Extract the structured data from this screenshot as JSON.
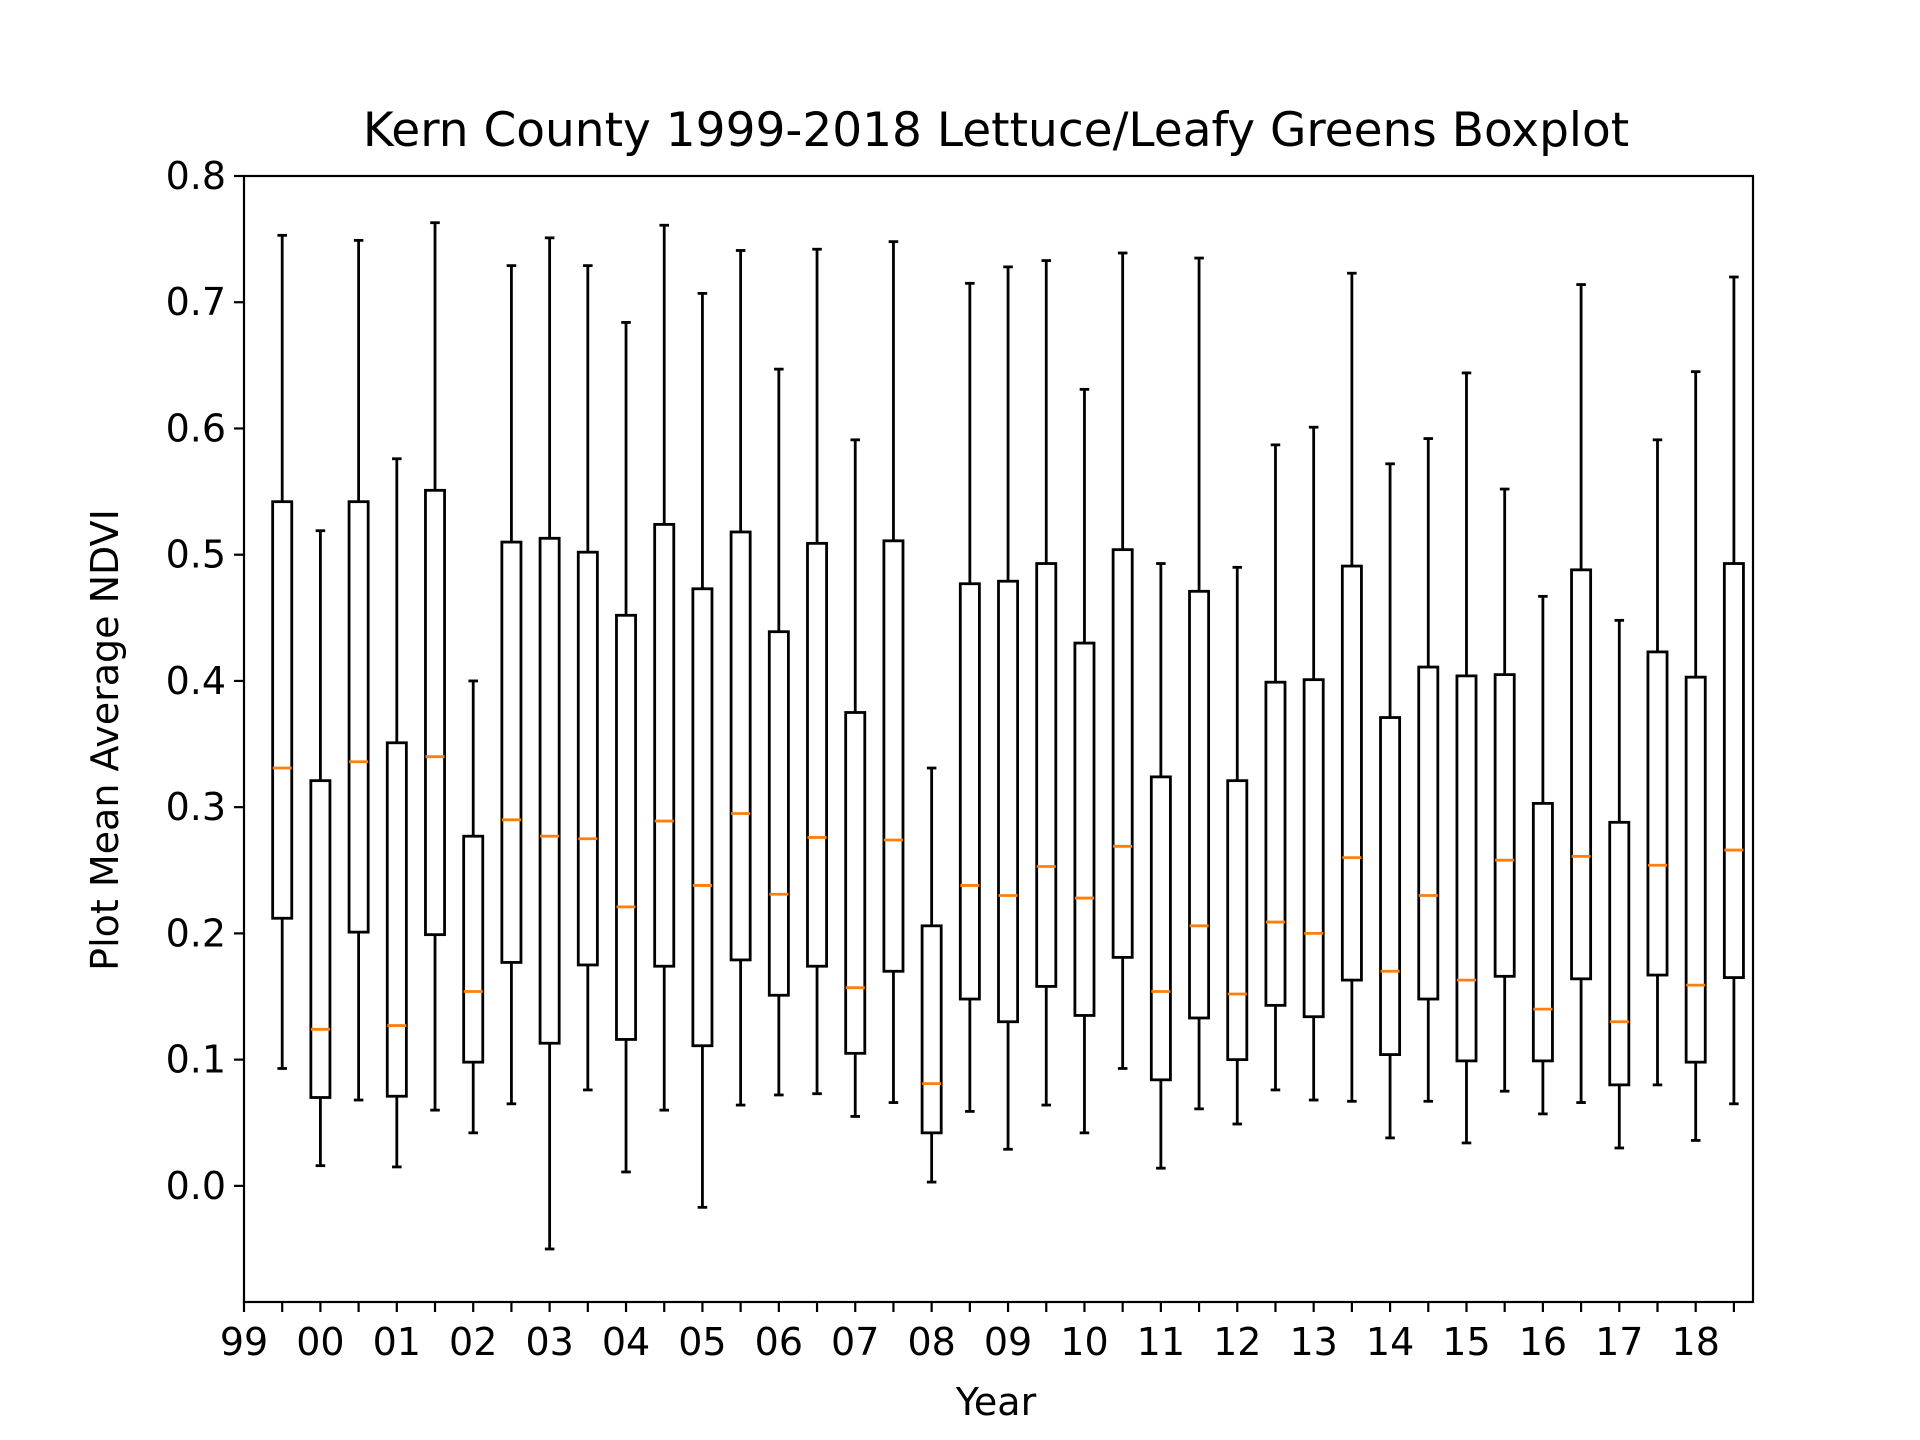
{
  "chart_data": {
    "type": "boxplot",
    "title": "Kern County 1999-2018 Lettuce/Leafy Greens Boxplot",
    "xlabel": "Year",
    "ylabel": "Plot Mean Average NDVI",
    "ylim": [
      -0.092,
      0.8
    ],
    "yticks": [
      0.0,
      0.1,
      0.2,
      0.3,
      0.4,
      0.5,
      0.6,
      0.7,
      0.8
    ],
    "ytick_labels": [
      "0.0",
      "0.1",
      "0.2",
      "0.3",
      "0.4",
      "0.5",
      "0.6",
      "0.7",
      "0.8"
    ],
    "xtick_labels": [
      "99",
      "00",
      "01",
      "02",
      "03",
      "04",
      "05",
      "06",
      "07",
      "08",
      "09",
      "10",
      "11",
      "12",
      "13",
      "14",
      "15",
      "16",
      "17",
      "18"
    ],
    "grid": false,
    "colors": {
      "box": "#000000",
      "median": "#ff7f0e"
    },
    "boxes": [
      {
        "whislo": 0.093,
        "q1": 0.212,
        "med": 0.331,
        "q3": 0.542,
        "whishi": 0.753
      },
      {
        "whislo": 0.016,
        "q1": 0.07,
        "med": 0.124,
        "q3": 0.321,
        "whishi": 0.519
      },
      {
        "whislo": 0.068,
        "q1": 0.201,
        "med": 0.336,
        "q3": 0.542,
        "whishi": 0.749
      },
      {
        "whislo": 0.015,
        "q1": 0.071,
        "med": 0.127,
        "q3": 0.351,
        "whishi": 0.576
      },
      {
        "whislo": 0.06,
        "q1": 0.199,
        "med": 0.34,
        "q3": 0.551,
        "whishi": 0.763
      },
      {
        "whislo": 0.042,
        "q1": 0.098,
        "med": 0.154,
        "q3": 0.277,
        "whishi": 0.4
      },
      {
        "whislo": 0.065,
        "q1": 0.177,
        "med": 0.29,
        "q3": 0.51,
        "whishi": 0.729
      },
      {
        "whislo": -0.05,
        "q1": 0.113,
        "med": 0.277,
        "q3": 0.513,
        "whishi": 0.751
      },
      {
        "whislo": 0.076,
        "q1": 0.175,
        "med": 0.275,
        "q3": 0.502,
        "whishi": 0.729
      },
      {
        "whislo": 0.011,
        "q1": 0.116,
        "med": 0.221,
        "q3": 0.452,
        "whishi": 0.684
      },
      {
        "whislo": 0.06,
        "q1": 0.174,
        "med": 0.289,
        "q3": 0.524,
        "whishi": 0.761
      },
      {
        "whislo": -0.017,
        "q1": 0.111,
        "med": 0.238,
        "q3": 0.473,
        "whishi": 0.707
      },
      {
        "whislo": 0.064,
        "q1": 0.179,
        "med": 0.295,
        "q3": 0.518,
        "whishi": 0.741
      },
      {
        "whislo": 0.072,
        "q1": 0.151,
        "med": 0.231,
        "q3": 0.439,
        "whishi": 0.647
      },
      {
        "whislo": 0.073,
        "q1": 0.174,
        "med": 0.276,
        "q3": 0.509,
        "whishi": 0.742
      },
      {
        "whislo": 0.055,
        "q1": 0.105,
        "med": 0.157,
        "q3": 0.375,
        "whishi": 0.591
      },
      {
        "whislo": 0.066,
        "q1": 0.17,
        "med": 0.274,
        "q3": 0.511,
        "whishi": 0.748
      },
      {
        "whislo": 0.003,
        "q1": 0.042,
        "med": 0.081,
        "q3": 0.206,
        "whishi": 0.331
      },
      {
        "whislo": 0.059,
        "q1": 0.148,
        "med": 0.238,
        "q3": 0.477,
        "whishi": 0.715
      },
      {
        "whislo": 0.029,
        "q1": 0.13,
        "med": 0.23,
        "q3": 0.479,
        "whishi": 0.728
      },
      {
        "whislo": 0.064,
        "q1": 0.158,
        "med": 0.253,
        "q3": 0.493,
        "whishi": 0.733
      },
      {
        "whislo": 0.042,
        "q1": 0.135,
        "med": 0.228,
        "q3": 0.43,
        "whishi": 0.631
      },
      {
        "whislo": 0.093,
        "q1": 0.181,
        "med": 0.269,
        "q3": 0.504,
        "whishi": 0.739
      },
      {
        "whislo": 0.014,
        "q1": 0.084,
        "med": 0.154,
        "q3": 0.324,
        "whishi": 0.493
      },
      {
        "whislo": 0.061,
        "q1": 0.133,
        "med": 0.206,
        "q3": 0.471,
        "whishi": 0.735
      },
      {
        "whislo": 0.049,
        "q1": 0.1,
        "med": 0.152,
        "q3": 0.321,
        "whishi": 0.49
      },
      {
        "whislo": 0.076,
        "q1": 0.143,
        "med": 0.209,
        "q3": 0.399,
        "whishi": 0.587
      },
      {
        "whislo": 0.068,
        "q1": 0.134,
        "med": 0.2,
        "q3": 0.401,
        "whishi": 0.601
      },
      {
        "whislo": 0.067,
        "q1": 0.163,
        "med": 0.26,
        "q3": 0.491,
        "whishi": 0.723
      },
      {
        "whislo": 0.038,
        "q1": 0.104,
        "med": 0.17,
        "q3": 0.371,
        "whishi": 0.572
      },
      {
        "whislo": 0.067,
        "q1": 0.148,
        "med": 0.23,
        "q3": 0.411,
        "whishi": 0.592
      },
      {
        "whislo": 0.034,
        "q1": 0.099,
        "med": 0.163,
        "q3": 0.404,
        "whishi": 0.644
      },
      {
        "whislo": 0.075,
        "q1": 0.166,
        "med": 0.258,
        "q3": 0.405,
        "whishi": 0.552
      },
      {
        "whislo": 0.057,
        "q1": 0.099,
        "med": 0.14,
        "q3": 0.303,
        "whishi": 0.467
      },
      {
        "whislo": 0.066,
        "q1": 0.164,
        "med": 0.261,
        "q3": 0.488,
        "whishi": 0.714
      },
      {
        "whislo": 0.03,
        "q1": 0.08,
        "med": 0.13,
        "q3": 0.288,
        "whishi": 0.448
      },
      {
        "whislo": 0.08,
        "q1": 0.167,
        "med": 0.254,
        "q3": 0.423,
        "whishi": 0.591
      },
      {
        "whislo": 0.036,
        "q1": 0.098,
        "med": 0.159,
        "q3": 0.403,
        "whishi": 0.645
      },
      {
        "whislo": 0.065,
        "q1": 0.165,
        "med": 0.266,
        "q3": 0.493,
        "whishi": 0.72
      }
    ]
  }
}
